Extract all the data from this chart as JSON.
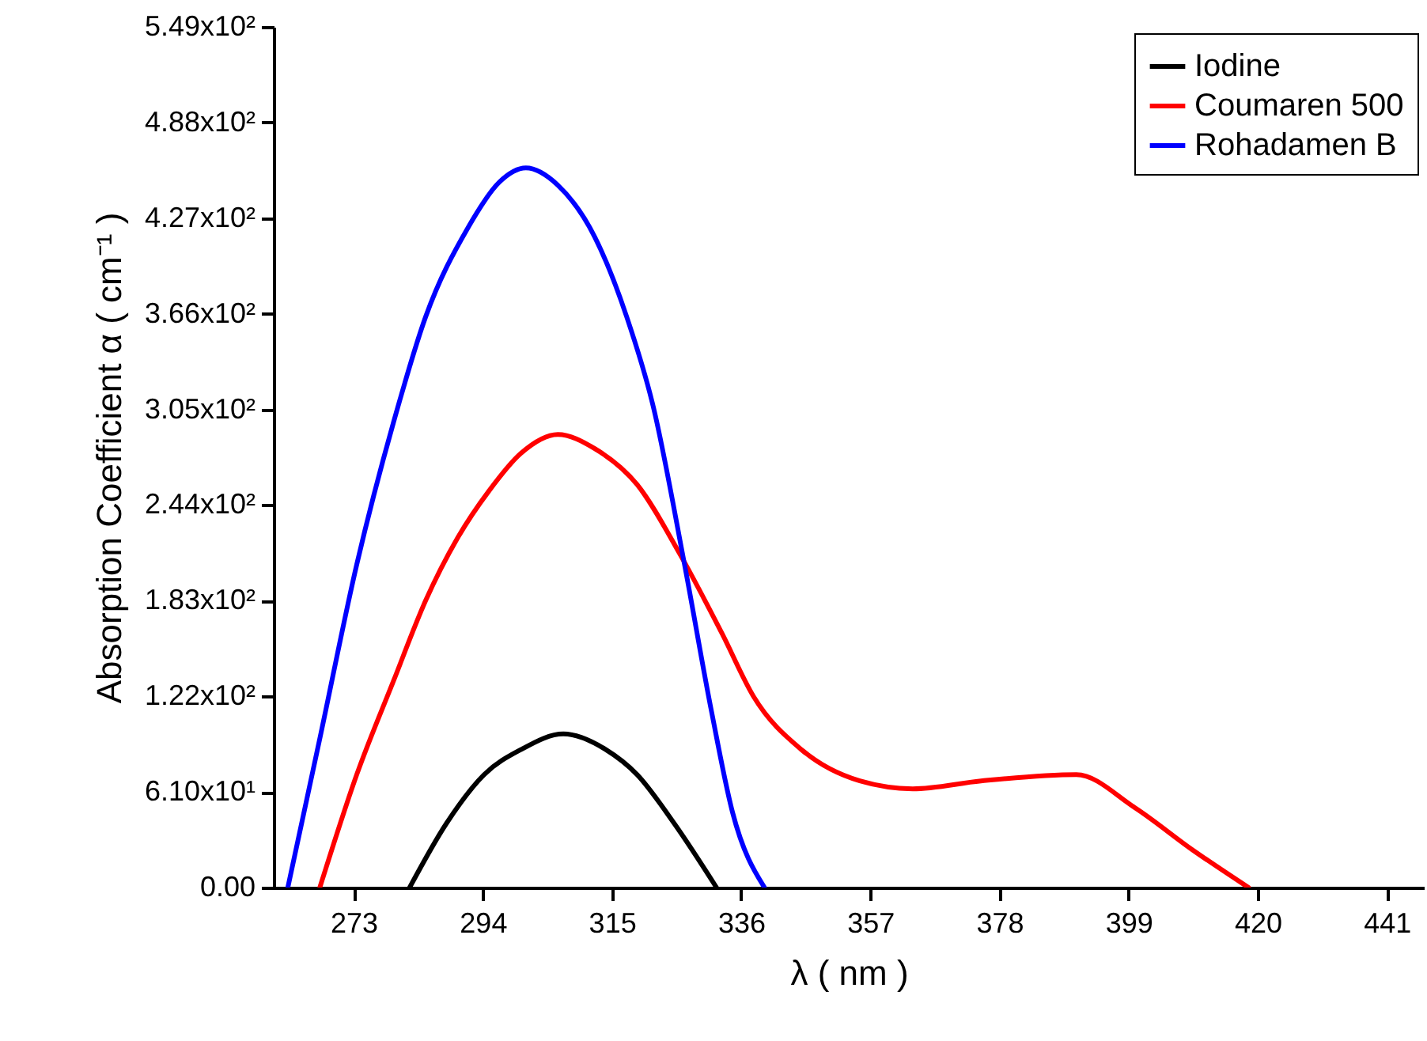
{
  "chart_data": {
    "type": "line",
    "xlabel": "λ ( nm )",
    "ylabel": "Absorption Coefficient α ( cm⁻¹ )",
    "xlim": [
      260,
      447
    ],
    "ylim": [
      0,
      549
    ],
    "xticks": [
      273,
      294,
      315,
      336,
      357,
      378,
      399,
      420,
      441
    ],
    "yticks": [
      {
        "value": 0,
        "label": "0.00"
      },
      {
        "value": 61,
        "label": "6.10x10¹"
      },
      {
        "value": 122,
        "label": "1.22x10²"
      },
      {
        "value": 183,
        "label": "1.83x10²"
      },
      {
        "value": 244,
        "label": "2.44x10²"
      },
      {
        "value": 305,
        "label": "3.05x10²"
      },
      {
        "value": 366,
        "label": "3.66x10²"
      },
      {
        "value": 427,
        "label": "4.27x10²"
      },
      {
        "value": 488,
        "label": "4.88x10²"
      },
      {
        "value": 549,
        "label": "5.49x10²"
      }
    ],
    "grid": false,
    "legend": "top right",
    "line_style": "solid",
    "series": [
      {
        "name": "Iodine",
        "color": "#000000",
        "x": [
          282.1,
          288.1,
          294.2,
          300.2,
          307.1,
          314,
          319.1,
          325.1,
          332
        ],
        "values": [
          0,
          41,
          72,
          88,
          98,
          88,
          72,
          41,
          0
        ]
      },
      {
        "name": "Coumaren 500",
        "color": "#ff0000",
        "x": [
          267.5,
          273.5,
          279.5,
          284.7,
          289.9,
          295,
          300.2,
          306.2,
          312.2,
          319.1,
          326,
          332.9,
          338,
          345.8,
          355.3,
          363.9,
          375,
          390.5,
          400,
          409.4,
          418.5
        ],
        "values": [
          0,
          72,
          132,
          183,
          223,
          253,
          277,
          289,
          280,
          257,
          213,
          162,
          122,
          88,
          68,
          63,
          68,
          72,
          51,
          24,
          0
        ]
      },
      {
        "name": "Rohadamen B",
        "color": "#0000ff",
        "x": [
          262.3,
          267.5,
          273.5,
          279.5,
          284.7,
          291.6,
          296.7,
          301,
          306.2,
          312.2,
          317.4,
          321.7,
          326.8,
          331.2,
          334.6,
          339.8
        ],
        "values": [
          0,
          95,
          206,
          297,
          364,
          421,
          450,
          459,
          448,
          415,
          364,
          307,
          206,
          112,
          48,
          0
        ]
      }
    ]
  }
}
